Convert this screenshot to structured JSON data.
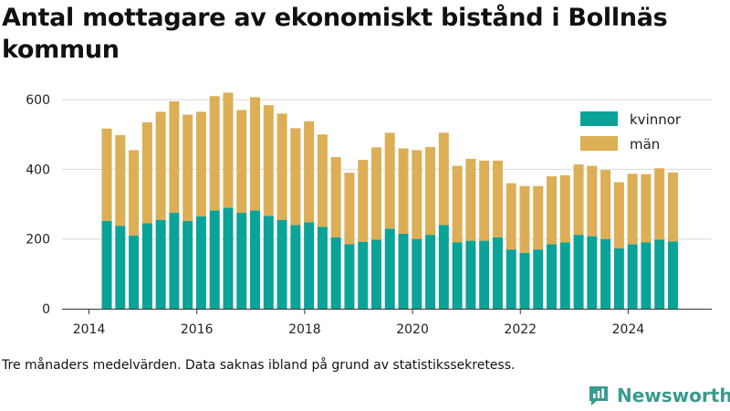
{
  "title": "Antal mottagare av ekonomiskt bistånd i Bollnäs kommun",
  "footnote": "Tre månaders medelvärden. Data saknas ibland på grund av statistikssekretess.",
  "brand": {
    "name": "Newsworthy",
    "icon": "newsworthy-logo-icon",
    "color": "#3a9b8d"
  },
  "colors": {
    "kvinnor": "#0aa398",
    "man": "#dcae56",
    "grid": "#d8d8d8"
  },
  "chart_data": {
    "type": "bar",
    "stacked": true,
    "title": "Antal mottagare av ekonomiskt bistånd i Bollnäs kommun",
    "xlabel": "",
    "ylabel": "",
    "ylim": [
      0,
      650
    ],
    "yticks": [
      0,
      200,
      400,
      600
    ],
    "xlim": [
      2013.5,
      2025.55
    ],
    "xticks": [
      2014,
      2016,
      2018,
      2020,
      2022,
      2024
    ],
    "grid": true,
    "legend_position": "top-right",
    "x": [
      2014.33,
      2014.58,
      2014.83,
      2015.08,
      2015.33,
      2015.58,
      2015.83,
      2016.08,
      2016.33,
      2016.58,
      2016.83,
      2017.08,
      2017.33,
      2017.58,
      2017.83,
      2018.08,
      2018.33,
      2018.58,
      2018.83,
      2019.08,
      2019.33,
      2019.58,
      2019.83,
      2020.08,
      2020.33,
      2020.58,
      2020.83,
      2021.08,
      2021.33,
      2021.58,
      2021.83,
      2022.08,
      2022.33,
      2022.58,
      2022.83,
      2023.08,
      2023.33,
      2023.58,
      2023.83,
      2024.08,
      2024.33,
      2024.58,
      2024.83
    ],
    "series": [
      {
        "name": "kvinnor",
        "color": "#0aa398",
        "values": [
          252,
          238,
          210,
          245,
          255,
          275,
          252,
          265,
          282,
          290,
          275,
          282,
          266,
          255,
          240,
          248,
          235,
          205,
          185,
          192,
          198,
          230,
          215,
          200,
          212,
          240,
          190,
          195,
          195,
          205,
          170,
          160,
          170,
          185,
          190,
          212,
          208,
          200,
          173,
          185,
          190,
          198,
          193
        ]
      },
      {
        "name": "män",
        "color": "#dcae56",
        "values": [
          265,
          260,
          245,
          290,
          310,
          320,
          305,
          300,
          328,
          330,
          295,
          325,
          318,
          305,
          278,
          290,
          265,
          230,
          205,
          235,
          265,
          275,
          245,
          255,
          252,
          265,
          220,
          235,
          230,
          220,
          190,
          192,
          182,
          195,
          193,
          202,
          202,
          198,
          190,
          202,
          196,
          205,
          198
        ]
      }
    ]
  }
}
